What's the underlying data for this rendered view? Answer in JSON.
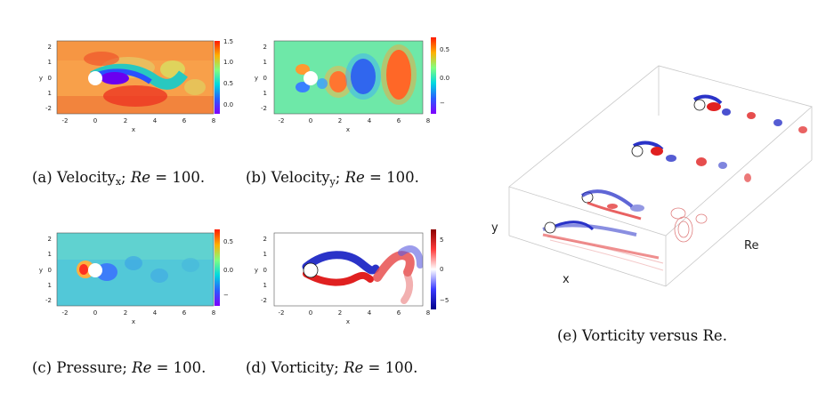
{
  "panels": [
    {
      "id": "a",
      "caption": {
        "prefix": "(a) Velocity",
        "sub": "x",
        "mid": "; ",
        "re_label": "Re",
        "re_value": " = 100."
      },
      "colorbar_ticks": [
        "1.5",
        "1.0",
        "0.5",
        "0.0"
      ],
      "colormap": "rainbow"
    },
    {
      "id": "b",
      "caption": {
        "prefix": "(b) Velocity",
        "sub": "y",
        "mid": "; ",
        "re_label": "Re",
        "re_value": " = 100."
      },
      "colorbar_ticks": [
        "0.5",
        "0.0",
        "−"
      ],
      "colormap": "rainbow"
    },
    {
      "id": "c",
      "caption": {
        "prefix": "(c) Pressure; ",
        "re_label": "Re",
        "re_value": " = 100."
      },
      "colorbar_ticks": [
        "0.5",
        "0.0",
        "−"
      ],
      "colormap": "rainbow"
    },
    {
      "id": "d",
      "caption": {
        "prefix": "(d) Vorticity; ",
        "re_label": "Re",
        "re_value": " = 100."
      },
      "colorbar_ticks": [
        "5",
        "0",
        "−5"
      ],
      "colormap": "bwr"
    }
  ],
  "axes": {
    "x_ticks": [
      "-2",
      "0",
      "2",
      "4",
      "6",
      "8"
    ],
    "y_ticks": [
      "2",
      "1",
      "0",
      "1",
      "-2"
    ],
    "xlabel": "x",
    "ylabel": "y"
  },
  "panel_e": {
    "caption": "(e) Vorticity versus Re.",
    "label_y": "y",
    "label_x": "x",
    "label_re": "Re"
  },
  "colors": {
    "blue": "#2a33c8",
    "red": "#e02020"
  }
}
